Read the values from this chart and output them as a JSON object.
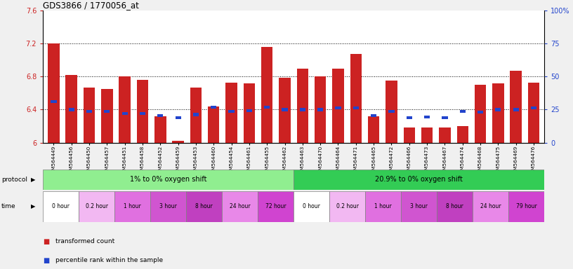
{
  "title": "GDS3866 / 1770056_at",
  "samples": [
    "GSM564449",
    "GSM564456",
    "GSM564450",
    "GSM564457",
    "GSM564451",
    "GSM564458",
    "GSM564452",
    "GSM564459",
    "GSM564453",
    "GSM564460",
    "GSM564454",
    "GSM564461",
    "GSM564455",
    "GSM564462",
    "GSM564463",
    "GSM564470",
    "GSM564464",
    "GSM564471",
    "GSM564465",
    "GSM564472",
    "GSM564466",
    "GSM564473",
    "GSM564467",
    "GSM564474",
    "GSM564468",
    "GSM564475",
    "GSM564469",
    "GSM564476"
  ],
  "red_values": [
    7.2,
    6.82,
    6.67,
    6.65,
    6.8,
    6.76,
    6.32,
    6.02,
    6.67,
    6.44,
    6.73,
    6.72,
    7.16,
    6.79,
    6.9,
    6.8,
    6.9,
    7.08,
    6.32,
    6.75,
    6.18,
    6.18,
    6.18,
    6.2,
    6.7,
    6.72,
    6.87,
    6.73
  ],
  "blue_values": [
    6.5,
    6.4,
    6.38,
    6.38,
    6.35,
    6.35,
    6.33,
    6.3,
    6.34,
    6.43,
    6.38,
    6.39,
    6.43,
    6.4,
    6.4,
    6.4,
    6.42,
    6.42,
    6.33,
    6.38,
    6.3,
    6.31,
    6.3,
    6.38,
    6.37,
    6.4,
    6.4,
    6.42
  ],
  "y_min": 6.0,
  "y_max": 7.6,
  "y_ticks_left": [
    6.0,
    6.4,
    6.8,
    7.2,
    7.6
  ],
  "y_ticks_right": [
    0,
    25,
    50,
    75,
    100
  ],
  "ytick_labels_left": [
    "6",
    "6.4",
    "6.8",
    "7.2",
    "7.6"
  ],
  "ytick_labels_right": [
    "0",
    "25",
    "50",
    "75",
    "100%"
  ],
  "dotted_lines": [
    6.4,
    6.8,
    7.2
  ],
  "protocol_label1": "1% to 0% oxygen shift",
  "protocol_label2": "20.9% to 0% oxygen shift",
  "protocol_color1": "#90EE90",
  "protocol_color2": "#33CC55",
  "time_labels": [
    "0 hour",
    "0.2 hour",
    "1 hour",
    "3 hour",
    "8 hour",
    "24 hour",
    "72 hour",
    "0 hour",
    "0.2 hour",
    "1 hour",
    "3 hour",
    "8 hour",
    "24 hour",
    "79 hour"
  ],
  "time_colors": [
    "#FFFFFF",
    "#F2B8F2",
    "#E070E0",
    "#D055D0",
    "#C040C0",
    "#E888E8",
    "#D044D0",
    "#FFFFFF",
    "#F2B8F2",
    "#E070E0",
    "#D055D0",
    "#C040C0",
    "#E888E8",
    "#D044D0"
  ],
  "bar_color": "#CC2222",
  "blue_color": "#2244CC",
  "bg_color": "#F0F0F0",
  "plot_bg": "#FFFFFF"
}
